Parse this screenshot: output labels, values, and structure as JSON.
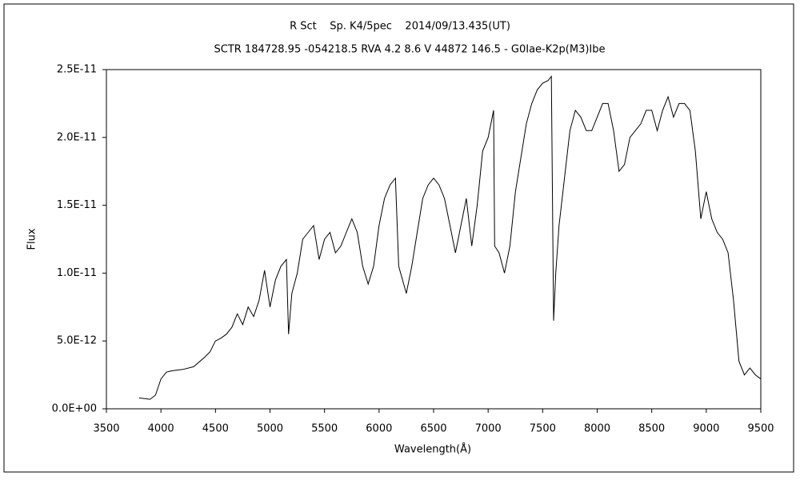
{
  "chart_data": {
    "type": "line",
    "title": "R Sct    Sp. K4/5pec    2014/09/13.435(UT)",
    "subtitle": "SCTR 184728.95 -054218.5 RVA 4.2 8.6 V 44872 146.5 - G0Iae-K2p(M3)Ibe",
    "x_label": "Wavelength(Å)",
    "y_label": "Flux",
    "xlim": [
      3500,
      9500
    ],
    "xticks": [
      3500,
      4000,
      4500,
      5000,
      5500,
      6000,
      6500,
      7000,
      7500,
      8000,
      8500,
      9000,
      9500
    ],
    "ylim": [
      0,
      2.5e-11
    ],
    "yticks": [
      {
        "value": 0,
        "label": "0.0E+00"
      },
      {
        "value": 5e-12,
        "label": "5.0E-12"
      },
      {
        "value": 1e-11,
        "label": "1.0E-11"
      },
      {
        "value": 1.5e-11,
        "label": "1.5E-11"
      },
      {
        "value": 2e-11,
        "label": "2.0E-11"
      },
      {
        "value": 2.5e-11,
        "label": "2.5E-11"
      }
    ],
    "x": [
      3800,
      3900,
      3950,
      4000,
      4050,
      4100,
      4200,
      4300,
      4400,
      4450,
      4500,
      4550,
      4600,
      4650,
      4700,
      4750,
      4800,
      4850,
      4900,
      4950,
      5000,
      5050,
      5100,
      5150,
      5170,
      5200,
      5250,
      5300,
      5350,
      5400,
      5450,
      5500,
      5550,
      5600,
      5650,
      5700,
      5750,
      5800,
      5850,
      5900,
      5950,
      6000,
      6050,
      6100,
      6150,
      6180,
      6250,
      6300,
      6350,
      6400,
      6450,
      6500,
      6550,
      6600,
      6650,
      6700,
      6750,
      6800,
      6850,
      6900,
      6950,
      7000,
      7050,
      7060,
      7100,
      7150,
      7200,
      7250,
      7300,
      7350,
      7400,
      7450,
      7500,
      7550,
      7580,
      7600,
      7620,
      7650,
      7700,
      7750,
      7800,
      7850,
      7900,
      7950,
      8000,
      8050,
      8100,
      8150,
      8200,
      8250,
      8300,
      8350,
      8400,
      8450,
      8500,
      8550,
      8600,
      8650,
      8700,
      8750,
      8800,
      8850,
      8900,
      8950,
      9000,
      9050,
      9100,
      9150,
      9200,
      9250,
      9300,
      9350,
      9400,
      9450,
      9500
    ],
    "series": [
      {
        "name": "Flux",
        "color": "#000000",
        "values": [
          8e-13,
          7e-13,
          1e-12,
          2.2e-12,
          2.7e-12,
          2.8e-12,
          2.9e-12,
          3.1e-12,
          3.8e-12,
          4.2e-12,
          5e-12,
          5.2e-12,
          5.5e-12,
          6e-12,
          7e-12,
          6.2e-12,
          7.5e-12,
          6.8e-12,
          8e-12,
          1.02e-11,
          7.5e-12,
          9.5e-12,
          1.05e-11,
          1.1e-11,
          5.5e-12,
          8.5e-12,
          1e-11,
          1.25e-11,
          1.3e-11,
          1.35e-11,
          1.1e-11,
          1.25e-11,
          1.3e-11,
          1.15e-11,
          1.2e-11,
          1.3e-11,
          1.4e-11,
          1.3e-11,
          1.05e-11,
          9.2e-12,
          1.05e-11,
          1.35e-11,
          1.55e-11,
          1.65e-11,
          1.7e-11,
          1.05e-11,
          8.5e-12,
          1.05e-11,
          1.3e-11,
          1.55e-11,
          1.65e-11,
          1.7e-11,
          1.65e-11,
          1.55e-11,
          1.35e-11,
          1.15e-11,
          1.35e-11,
          1.55e-11,
          1.2e-11,
          1.5e-11,
          1.9e-11,
          2e-11,
          2.2e-11,
          1.2e-11,
          1.15e-11,
          1e-11,
          1.2e-11,
          1.6e-11,
          1.85e-11,
          2.1e-11,
          2.25e-11,
          2.35e-11,
          2.4e-11,
          2.42e-11,
          2.45e-11,
          6.5e-12,
          1e-11,
          1.35e-11,
          1.7e-11,
          2.05e-11,
          2.2e-11,
          2.15e-11,
          2.05e-11,
          2.05e-11,
          2.15e-11,
          2.25e-11,
          2.25e-11,
          2.05e-11,
          1.75e-11,
          1.8e-11,
          2e-11,
          2.05e-11,
          2.1e-11,
          2.2e-11,
          2.2e-11,
          2.05e-11,
          2.2e-11,
          2.3e-11,
          2.15e-11,
          2.25e-11,
          2.25e-11,
          2.2e-11,
          1.9e-11,
          1.4e-11,
          1.6e-11,
          1.4e-11,
          1.3e-11,
          1.25e-11,
          1.15e-11,
          8e-12,
          3.5e-12,
          2.5e-12,
          3e-12,
          2.5e-12,
          2.2e-12
        ]
      }
    ]
  }
}
